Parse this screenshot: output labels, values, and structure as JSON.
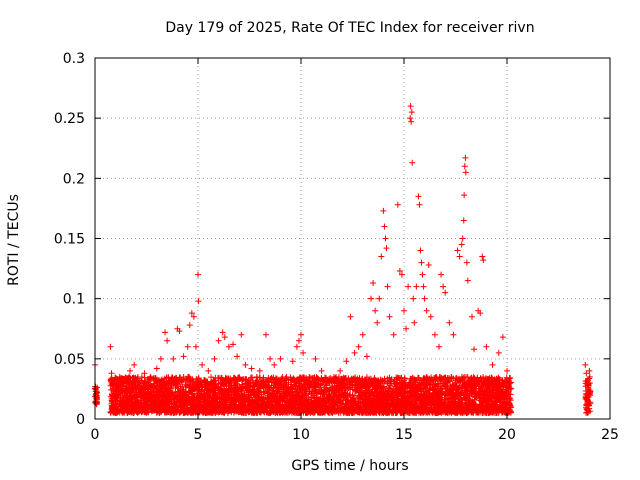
{
  "chart_data": {
    "type": "scatter",
    "title": "Day 179 of 2025, Rate Of TEC Index for receiver rivn",
    "xlabel": "GPS time / hours",
    "ylabel": "ROTI / TECUs",
    "xlim": [
      0,
      25
    ],
    "ylim": [
      0,
      0.3
    ],
    "x_ticks": [
      0,
      5,
      10,
      15,
      20,
      25
    ],
    "x_tick_labels": [
      "0",
      "5",
      "10",
      "15",
      "20",
      "25"
    ],
    "y_ticks": [
      0,
      0.05,
      0.1,
      0.15,
      0.2,
      0.25,
      0.3
    ],
    "y_tick_labels": [
      "0",
      "0.05",
      "0.1",
      "0.15",
      "0.2",
      "0.25",
      "0.3"
    ],
    "grid": true,
    "marker": "+",
    "color": "#ff0000",
    "series": [
      {
        "name": "ROTI",
        "points": [
          [
            0.0,
            0.045
          ],
          [
            0.02,
            0.025
          ],
          [
            0.04,
            0.02
          ],
          [
            0.06,
            0.015
          ],
          [
            0.08,
            0.018
          ],
          [
            0.1,
            0.022
          ],
          [
            0.75,
            0.06
          ],
          [
            0.8,
            0.038
          ],
          [
            0.9,
            0.03
          ],
          [
            1.0,
            0.025
          ],
          [
            1.2,
            0.035
          ],
          [
            1.5,
            0.028
          ],
          [
            1.7,
            0.04
          ],
          [
            1.9,
            0.045
          ],
          [
            2.1,
            0.03
          ],
          [
            2.4,
            0.038
          ],
          [
            2.7,
            0.035
          ],
          [
            3.0,
            0.042
          ],
          [
            3.2,
            0.05
          ],
          [
            3.4,
            0.072
          ],
          [
            3.5,
            0.065
          ],
          [
            3.8,
            0.05
          ],
          [
            4.0,
            0.075
          ],
          [
            4.1,
            0.073
          ],
          [
            4.3,
            0.052
          ],
          [
            4.5,
            0.06
          ],
          [
            4.6,
            0.078
          ],
          [
            4.7,
            0.088
          ],
          [
            4.8,
            0.085
          ],
          [
            4.9,
            0.06
          ],
          [
            5.0,
            0.12
          ],
          [
            5.02,
            0.098
          ],
          [
            5.2,
            0.045
          ],
          [
            5.5,
            0.04
          ],
          [
            5.8,
            0.05
          ],
          [
            6.0,
            0.065
          ],
          [
            6.2,
            0.072
          ],
          [
            6.3,
            0.068
          ],
          [
            6.5,
            0.06
          ],
          [
            6.7,
            0.062
          ],
          [
            6.9,
            0.052
          ],
          [
            7.1,
            0.07
          ],
          [
            7.3,
            0.045
          ],
          [
            7.6,
            0.042
          ],
          [
            8.0,
            0.04
          ],
          [
            8.3,
            0.07
          ],
          [
            8.5,
            0.05
          ],
          [
            8.7,
            0.045
          ],
          [
            9.0,
            0.05
          ],
          [
            9.3,
            0.035
          ],
          [
            9.6,
            0.048
          ],
          [
            9.8,
            0.06
          ],
          [
            9.9,
            0.065
          ],
          [
            10.0,
            0.07
          ],
          [
            10.1,
            0.055
          ],
          [
            10.4,
            0.035
          ],
          [
            10.7,
            0.05
          ],
          [
            11.0,
            0.04
          ],
          [
            11.3,
            0.03
          ],
          [
            11.6,
            0.035
          ],
          [
            11.9,
            0.04
          ],
          [
            12.2,
            0.048
          ],
          [
            12.4,
            0.085
          ],
          [
            12.6,
            0.055
          ],
          [
            12.8,
            0.06
          ],
          [
            13.0,
            0.07
          ],
          [
            13.2,
            0.052
          ],
          [
            13.4,
            0.1
          ],
          [
            13.5,
            0.113
          ],
          [
            13.6,
            0.09
          ],
          [
            13.7,
            0.08
          ],
          [
            13.8,
            0.1
          ],
          [
            13.9,
            0.135
          ],
          [
            14.0,
            0.173
          ],
          [
            14.05,
            0.16
          ],
          [
            14.1,
            0.15
          ],
          [
            14.15,
            0.142
          ],
          [
            14.2,
            0.11
          ],
          [
            14.3,
            0.085
          ],
          [
            14.5,
            0.07
          ],
          [
            14.7,
            0.178
          ],
          [
            14.8,
            0.123
          ],
          [
            14.9,
            0.12
          ],
          [
            15.0,
            0.09
          ],
          [
            15.1,
            0.075
          ],
          [
            15.2,
            0.11
          ],
          [
            15.3,
            0.25
          ],
          [
            15.32,
            0.26
          ],
          [
            15.35,
            0.247
          ],
          [
            15.38,
            0.255
          ],
          [
            15.4,
            0.213
          ],
          [
            15.45,
            0.1
          ],
          [
            15.5,
            0.08
          ],
          [
            15.6,
            0.11
          ],
          [
            15.7,
            0.185
          ],
          [
            15.75,
            0.178
          ],
          [
            15.8,
            0.14
          ],
          [
            15.85,
            0.13
          ],
          [
            15.9,
            0.12
          ],
          [
            15.95,
            0.11
          ],
          [
            16.0,
            0.1
          ],
          [
            16.1,
            0.09
          ],
          [
            16.2,
            0.128
          ],
          [
            16.3,
            0.085
          ],
          [
            16.5,
            0.07
          ],
          [
            16.7,
            0.06
          ],
          [
            16.8,
            0.12
          ],
          [
            16.9,
            0.11
          ],
          [
            17.0,
            0.105
          ],
          [
            17.2,
            0.08
          ],
          [
            17.4,
            0.07
          ],
          [
            17.6,
            0.14
          ],
          [
            17.7,
            0.135
          ],
          [
            17.8,
            0.145
          ],
          [
            17.85,
            0.15
          ],
          [
            17.9,
            0.165
          ],
          [
            17.92,
            0.186
          ],
          [
            17.95,
            0.21
          ],
          [
            17.98,
            0.217
          ],
          [
            18.0,
            0.205
          ],
          [
            18.05,
            0.13
          ],
          [
            18.1,
            0.115
          ],
          [
            18.3,
            0.085
          ],
          [
            18.4,
            0.058
          ],
          [
            18.6,
            0.09
          ],
          [
            18.7,
            0.088
          ],
          [
            18.8,
            0.135
          ],
          [
            18.85,
            0.132
          ],
          [
            19.0,
            0.06
          ],
          [
            19.3,
            0.045
          ],
          [
            19.6,
            0.055
          ],
          [
            19.8,
            0.068
          ],
          [
            20.0,
            0.04
          ],
          [
            20.1,
            0.03
          ],
          [
            20.2,
            0.025
          ],
          [
            23.8,
            0.045
          ],
          [
            23.85,
            0.038
          ],
          [
            23.9,
            0.03
          ],
          [
            23.95,
            0.025
          ],
          [
            24.0,
            0.04
          ],
          [
            24.02,
            0.035
          ]
        ],
        "segments": [
          {
            "x_range": [
              0.0,
              0.1
            ],
            "base": [
              0.012,
              0.03
            ]
          },
          {
            "x_range": [
              0.75,
              20.2
            ],
            "base": [
              0.005,
              0.035
            ]
          },
          {
            "x_range": [
              23.8,
              24.05
            ],
            "base": [
              0.005,
              0.035
            ]
          }
        ]
      }
    ]
  }
}
